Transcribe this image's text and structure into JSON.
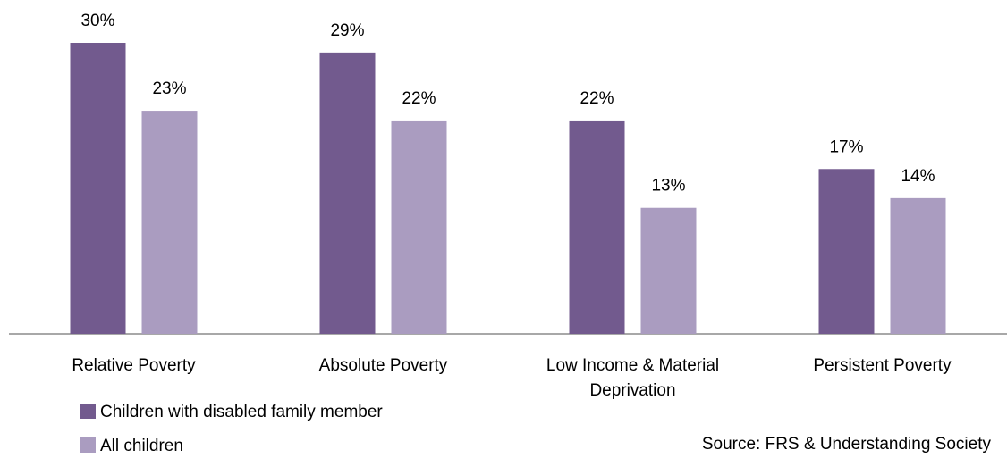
{
  "chart_data": {
    "type": "bar",
    "categories": [
      "Relative Poverty",
      "Absolute Poverty",
      "Low Income & Material Deprivation",
      "Persistent Poverty"
    ],
    "series": [
      {
        "name": "Children with disabled family member",
        "color": "#725a8e",
        "values": [
          30,
          29,
          22,
          17
        ],
        "value_labels": [
          "30%",
          "29%",
          "22%",
          "17%"
        ]
      },
      {
        "name": "All children",
        "color": "#aa9cc0",
        "values": [
          23,
          22,
          13,
          14
        ],
        "value_labels": [
          "23%",
          "22%",
          "13%",
          "14%"
        ]
      }
    ],
    "ylim": [
      0,
      30
    ],
    "legend": "bottom-left",
    "annotation": "Source: FRS & Understanding Society"
  }
}
